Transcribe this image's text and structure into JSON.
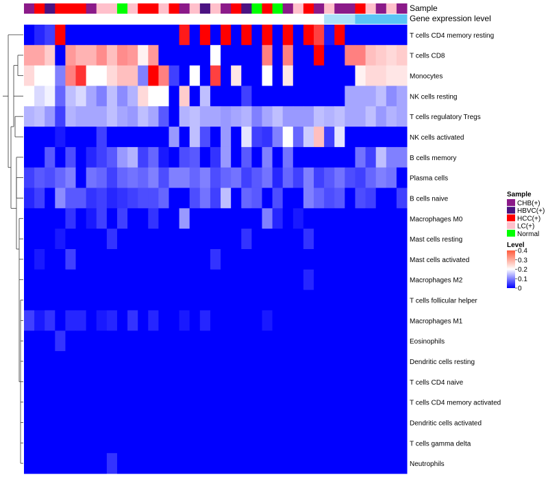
{
  "chart_data": {
    "type": "heatmap",
    "title": "",
    "colorscale": {
      "low": "#0000ff",
      "mid": "#ffffff",
      "high": "#ff0000",
      "min": 0,
      "mid_value": 0.2,
      "max": 0.4
    },
    "track_labels": {
      "sample": "Sample",
      "gene": "Gene expression level"
    },
    "sample_groups": [
      "CHB(+)",
      "HBVC(+)",
      "HCC(+)",
      "LC(+)",
      "Normal"
    ],
    "sample_colors": {
      "CHB(+)": "#8b1a89",
      "HBVC(+)": "#4b1382",
      "HCC(+)": "#ff0000",
      "LC(+)": "#ffc0cb",
      "Normal": "#00ff00"
    },
    "samples": [
      "CHB(+)",
      "HCC(+)",
      "HBVC(+)",
      "HCC(+)",
      "HCC(+)",
      "HCC(+)",
      "CHB(+)",
      "LC(+)",
      "LC(+)",
      "Normal",
      "LC(+)",
      "HCC(+)",
      "HCC(+)",
      "LC(+)",
      "HCC(+)",
      "CHB(+)",
      "LC(+)",
      "HBVC(+)",
      "LC(+)",
      "CHB(+)",
      "HCC(+)",
      "HBVC(+)",
      "Normal",
      "HCC(+)",
      "Normal",
      "CHB(+)",
      "LC(+)",
      "HCC(+)",
      "CHB(+)",
      "LC(+)",
      "CHB(+)",
      "CHB(+)",
      "HCC(+)",
      "LC(+)",
      "CHB(+)",
      "LC(+)",
      "CHB(+)"
    ],
    "gene_level": [
      0,
      0,
      0,
      0,
      0,
      0,
      0,
      0,
      0,
      0,
      0,
      0,
      0,
      0,
      0,
      0,
      0,
      0,
      0,
      0,
      0,
      0,
      0,
      0,
      0,
      0,
      0,
      0,
      0,
      0.5,
      0.5,
      0.5,
      1,
      1,
      1,
      1,
      1
    ],
    "rows": [
      "T cells CD4 memory resting",
      "T cells CD8",
      "Monocytes",
      "NK cells resting",
      "T cells regulatory  Tregs",
      "NK cells activated",
      "B cells memory",
      "Plasma cells",
      "B cells naive",
      "Macrophages M0",
      "Mast cells resting",
      "Mast cells activated",
      "Macrophages M2",
      "T cells follicular helper",
      "Macrophages M1",
      "Eosinophils",
      "Dendritic cells resting",
      "T cells CD4 naive",
      "T cells CD4 memory activated",
      "Dendritic cells activated",
      "T cells gamma delta",
      "Neutrophils"
    ],
    "values": [
      [
        0.0,
        0.03,
        0.05,
        0.4,
        0.0,
        0.0,
        0.0,
        0.0,
        0.0,
        0.0,
        0.0,
        0.0,
        0.0,
        0.0,
        0.0,
        0.38,
        0.0,
        0.4,
        0.0,
        0.4,
        0.0,
        0.4,
        0.0,
        0.4,
        0.0,
        0.4,
        0.0,
        0.4,
        0.35,
        0.02,
        0.4,
        0.0,
        0.0,
        0.0,
        0.0,
        0.0,
        0.0
      ],
      [
        0.27,
        0.27,
        0.24,
        0.0,
        0.28,
        0.26,
        0.26,
        0.29,
        0.25,
        0.29,
        0.28,
        0.21,
        0.28,
        0.0,
        0.0,
        0.0,
        0.0,
        0.0,
        0.2,
        0.0,
        0.0,
        0.0,
        0.0,
        0.3,
        0.0,
        0.3,
        0.0,
        0.0,
        0.4,
        0.0,
        0.0,
        0.3,
        0.3,
        0.25,
        0.24,
        0.23,
        0.24
      ],
      [
        0.23,
        0.2,
        0.2,
        0.1,
        0.3,
        0.36,
        0.2,
        0.2,
        0.23,
        0.25,
        0.25,
        0.1,
        0.4,
        0.3,
        0.05,
        0.0,
        0.2,
        0.0,
        0.35,
        0.0,
        0.22,
        0.0,
        0.0,
        0.2,
        0.0,
        0.22,
        0.0,
        0.0,
        0.0,
        0.0,
        0.0,
        0.0,
        0.21,
        0.23,
        0.23,
        0.22,
        0.22
      ],
      [
        0.2,
        0.17,
        0.19,
        0.08,
        0.15,
        0.17,
        0.13,
        0.1,
        0.15,
        0.11,
        0.14,
        0.23,
        0.2,
        0.2,
        0.0,
        0.24,
        0.0,
        0.15,
        0.0,
        0.0,
        0.0,
        0.05,
        0.0,
        0.0,
        0.0,
        0.0,
        0.0,
        0.0,
        0.0,
        0.0,
        0.0,
        0.13,
        0.13,
        0.13,
        0.15,
        0.11,
        0.13
      ],
      [
        0.14,
        0.15,
        0.12,
        0.05,
        0.14,
        0.13,
        0.13,
        0.13,
        0.15,
        0.13,
        0.12,
        0.15,
        0.13,
        0.07,
        0.0,
        0.14,
        0.15,
        0.13,
        0.13,
        0.12,
        0.13,
        0.14,
        0.1,
        0.13,
        0.15,
        0.12,
        0.12,
        0.12,
        0.15,
        0.14,
        0.15,
        0.13,
        0.13,
        0.15,
        0.12,
        0.14,
        0.13
      ],
      [
        0.0,
        0.0,
        0.0,
        0.02,
        0.0,
        0.0,
        0.0,
        0.05,
        0.0,
        0.0,
        0.0,
        0.0,
        0.0,
        0.0,
        0.12,
        0.0,
        0.15,
        0.06,
        0.0,
        0.12,
        0.0,
        0.18,
        0.05,
        0.04,
        0.1,
        0.2,
        0.08,
        0.16,
        0.25,
        0.05,
        0.18,
        0.0,
        0.0,
        0.0,
        0.0,
        0.0,
        0.0
      ],
      [
        0.0,
        0.0,
        0.07,
        0.0,
        0.06,
        0.0,
        0.03,
        0.05,
        0.07,
        0.12,
        0.14,
        0.05,
        0.08,
        0.02,
        0.0,
        0.06,
        0.07,
        0.0,
        0.04,
        0.12,
        0.0,
        0.07,
        0.0,
        0.1,
        0.0,
        0.09,
        0.0,
        0.0,
        0.0,
        0.0,
        0.0,
        0.0,
        0.09,
        0.05,
        0.15,
        0.1,
        0.1
      ],
      [
        0.05,
        0.07,
        0.06,
        0.08,
        0.1,
        0.0,
        0.09,
        0.08,
        0.05,
        0.08,
        0.09,
        0.08,
        0.1,
        0.06,
        0.1,
        0.1,
        0.08,
        0.1,
        0.06,
        0.08,
        0.09,
        0.05,
        0.07,
        0.09,
        0.03,
        0.08,
        0.05,
        0.1,
        0.05,
        0.07,
        0.09,
        0.06,
        0.05,
        0.08,
        0.1,
        0.09,
        0.0
      ],
      [
        0.03,
        0.05,
        0.0,
        0.11,
        0.07,
        0.07,
        0.04,
        0.05,
        0.03,
        0.04,
        0.05,
        0.06,
        0.06,
        0.08,
        0.0,
        0.0,
        0.06,
        0.09,
        0.05,
        0.15,
        0.0,
        0.08,
        0.07,
        0.0,
        0.06,
        0.0,
        0.0,
        0.1,
        0.08,
        0.06,
        0.07,
        0.0,
        0.06,
        0.05,
        0.0,
        0.0,
        0.05
      ],
      [
        0.0,
        0.0,
        0.0,
        0.0,
        0.04,
        0.0,
        0.02,
        0.05,
        0.0,
        0.05,
        0.0,
        0.0,
        0.04,
        0.0,
        0.0,
        0.12,
        0.0,
        0.0,
        0.0,
        0.0,
        0.0,
        0.0,
        0.0,
        0.1,
        0.03,
        0.0,
        0.02,
        0.0,
        0.0,
        0.0,
        0.0,
        0.0,
        0.0,
        0.0,
        0.0,
        0.0,
        0.0
      ],
      [
        0.0,
        0.0,
        0.0,
        0.02,
        0.0,
        0.0,
        0.0,
        0.0,
        0.04,
        0.0,
        0.0,
        0.0,
        0.0,
        0.0,
        0.0,
        0.0,
        0.0,
        0.0,
        0.0,
        0.0,
        0.0,
        0.04,
        0.0,
        0.0,
        0.0,
        0.0,
        0.0,
        0.04,
        0.0,
        0.0,
        0.0,
        0.0,
        0.0,
        0.0,
        0.0,
        0.0,
        0.0
      ],
      [
        0.0,
        0.02,
        0.0,
        0.0,
        0.05,
        0.0,
        0.0,
        0.0,
        0.0,
        0.0,
        0.0,
        0.0,
        0.0,
        0.0,
        0.0,
        0.0,
        0.0,
        0.0,
        0.04,
        0.0,
        0.0,
        0.0,
        0.0,
        0.0,
        0.0,
        0.0,
        0.0,
        0.0,
        0.0,
        0.0,
        0.0,
        0.0,
        0.0,
        0.0,
        0.0,
        0.0,
        0.0
      ],
      [
        0.0,
        0.0,
        0.0,
        0.0,
        0.0,
        0.0,
        0.0,
        0.0,
        0.0,
        0.0,
        0.0,
        0.0,
        0.0,
        0.0,
        0.0,
        0.0,
        0.0,
        0.0,
        0.0,
        0.0,
        0.0,
        0.0,
        0.0,
        0.0,
        0.0,
        0.0,
        0.0,
        0.03,
        0.0,
        0.0,
        0.0,
        0.0,
        0.0,
        0.0,
        0.0,
        0.0,
        0.0
      ],
      [
        0.0,
        0.0,
        0.0,
        0.0,
        0.0,
        0.0,
        0.0,
        0.0,
        0.0,
        0.0,
        0.0,
        0.0,
        0.0,
        0.0,
        0.0,
        0.0,
        0.0,
        0.0,
        0.0,
        0.0,
        0.0,
        0.0,
        0.0,
        0.0,
        0.0,
        0.0,
        0.0,
        0.0,
        0.0,
        0.0,
        0.0,
        0.0,
        0.0,
        0.0,
        0.0,
        0.0,
        0.0
      ],
      [
        0.05,
        0.02,
        0.04,
        0.0,
        0.03,
        0.03,
        0.0,
        0.02,
        0.03,
        0.0,
        0.04,
        0.0,
        0.03,
        0.0,
        0.0,
        0.02,
        0.0,
        0.03,
        0.0,
        0.0,
        0.0,
        0.0,
        0.0,
        0.02,
        0.0,
        0.0,
        0.0,
        0.0,
        0.0,
        0.0,
        0.0,
        0.0,
        0.0,
        0.0,
        0.0,
        0.0,
        0.0
      ],
      [
        0.0,
        0.0,
        0.0,
        0.04,
        0.0,
        0.0,
        0.0,
        0.0,
        0.0,
        0.0,
        0.0,
        0.0,
        0.0,
        0.0,
        0.0,
        0.0,
        0.0,
        0.0,
        0.0,
        0.0,
        0.0,
        0.0,
        0.0,
        0.0,
        0.0,
        0.0,
        0.0,
        0.0,
        0.0,
        0.0,
        0.0,
        0.0,
        0.0,
        0.0,
        0.0,
        0.0,
        0.0
      ],
      [
        0.0,
        0.0,
        0.0,
        0.0,
        0.0,
        0.0,
        0.0,
        0.0,
        0.0,
        0.0,
        0.0,
        0.0,
        0.0,
        0.0,
        0.0,
        0.0,
        0.0,
        0.0,
        0.0,
        0.0,
        0.0,
        0.0,
        0.0,
        0.0,
        0.0,
        0.0,
        0.0,
        0.0,
        0.0,
        0.0,
        0.0,
        0.0,
        0.0,
        0.0,
        0.0,
        0.0,
        0.0
      ],
      [
        0.0,
        0.0,
        0.0,
        0.0,
        0.0,
        0.0,
        0.0,
        0.0,
        0.0,
        0.0,
        0.0,
        0.0,
        0.0,
        0.0,
        0.0,
        0.0,
        0.0,
        0.0,
        0.0,
        0.0,
        0.0,
        0.0,
        0.0,
        0.0,
        0.0,
        0.0,
        0.0,
        0.0,
        0.0,
        0.0,
        0.0,
        0.0,
        0.0,
        0.0,
        0.0,
        0.0,
        0.0
      ],
      [
        0.0,
        0.0,
        0.0,
        0.0,
        0.0,
        0.0,
        0.0,
        0.0,
        0.0,
        0.0,
        0.0,
        0.0,
        0.0,
        0.0,
        0.0,
        0.0,
        0.0,
        0.0,
        0.0,
        0.0,
        0.0,
        0.0,
        0.0,
        0.0,
        0.0,
        0.0,
        0.0,
        0.0,
        0.0,
        0.0,
        0.0,
        0.0,
        0.0,
        0.0,
        0.0,
        0.0,
        0.0
      ],
      [
        0.0,
        0.0,
        0.0,
        0.0,
        0.0,
        0.0,
        0.0,
        0.0,
        0.0,
        0.0,
        0.0,
        0.0,
        0.0,
        0.0,
        0.0,
        0.0,
        0.0,
        0.0,
        0.0,
        0.0,
        0.0,
        0.0,
        0.0,
        0.0,
        0.0,
        0.0,
        0.0,
        0.0,
        0.0,
        0.0,
        0.0,
        0.0,
        0.0,
        0.0,
        0.0,
        0.0,
        0.0
      ],
      [
        0.0,
        0.0,
        0.0,
        0.0,
        0.0,
        0.0,
        0.0,
        0.0,
        0.0,
        0.0,
        0.0,
        0.0,
        0.0,
        0.0,
        0.0,
        0.0,
        0.0,
        0.0,
        0.0,
        0.0,
        0.0,
        0.0,
        0.0,
        0.0,
        0.0,
        0.0,
        0.0,
        0.0,
        0.0,
        0.0,
        0.0,
        0.0,
        0.0,
        0.0,
        0.0,
        0.0,
        0.0
      ],
      [
        0.0,
        0.0,
        0.0,
        0.0,
        0.0,
        0.0,
        0.0,
        0.0,
        0.04,
        0.0,
        0.0,
        0.0,
        0.0,
        0.0,
        0.0,
        0.0,
        0.0,
        0.0,
        0.0,
        0.0,
        0.0,
        0.0,
        0.0,
        0.0,
        0.0,
        0.0,
        0.0,
        0.0,
        0.0,
        0.0,
        0.0,
        0.0,
        0.0,
        0.0,
        0.0,
        0.0,
        0.0
      ]
    ],
    "gene_colors": {
      "low": "#ffffff",
      "high": "#5bc4f5"
    },
    "legend": {
      "sample_title": "Sample",
      "level_title": "Level",
      "level_ticks": [
        "0.4",
        "0.3",
        "0.2",
        "0.1",
        "0"
      ],
      "level_tick_values": [
        0.4,
        0.3,
        0.2,
        0.1,
        0
      ],
      "placement": "right"
    }
  }
}
